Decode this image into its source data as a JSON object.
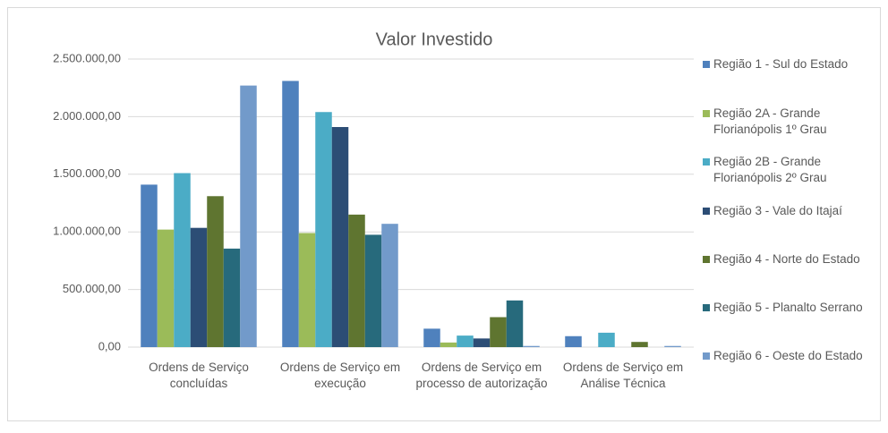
{
  "chart_data": {
    "type": "bar",
    "title": "Valor Investido",
    "categories": [
      "Ordens de Serviço concluídas",
      "Ordens de Serviço em execução",
      "Ordens de Serviço em processo de autorização",
      "Ordens de Serviço  em Análise Técnica"
    ],
    "series": [
      {
        "name": "Região 1 - Sul do Estado",
        "color": "#4f81bd",
        "values": [
          1410000,
          2310000,
          160000,
          95000
        ]
      },
      {
        "name": "Região 2A - Grande Florianópolis 1º Grau",
        "color": "#9bbb59",
        "values": [
          1020000,
          990000,
          40000,
          0
        ]
      },
      {
        "name": "Região 2B  - Grande Florianópolis 2º Grau",
        "color": "#4bacc6",
        "values": [
          1510000,
          2040000,
          100000,
          125000
        ]
      },
      {
        "name": "Região 3   - Vale do Itajaí",
        "color": "#2c4d75",
        "values": [
          1035000,
          1910000,
          75000,
          0
        ]
      },
      {
        "name": "Região 4  - Norte do Estado",
        "color": "#5f7530",
        "values": [
          1310000,
          1150000,
          260000,
          45000
        ]
      },
      {
        "name": "Região 5  - Planalto Serrano",
        "color": "#276a7c",
        "values": [
          855000,
          975000,
          405000,
          0
        ]
      },
      {
        "name": "Região 6  - Oeste do Estado",
        "color": "#729aca",
        "values": [
          2270000,
          1070000,
          10000,
          10000
        ]
      }
    ],
    "ylim": [
      0,
      2500000
    ],
    "yticks": [
      {
        "value": 0,
        "label": "0,00"
      },
      {
        "value": 500000,
        "label": "500.000,00"
      },
      {
        "value": 1000000,
        "label": "1.000.000,00"
      },
      {
        "value": 1500000,
        "label": "1.500.000,00"
      },
      {
        "value": 2000000,
        "label": "2.000.000,00"
      },
      {
        "value": 2500000,
        "label": "2.500.000,00"
      }
    ],
    "grid": true,
    "legend": "right"
  }
}
